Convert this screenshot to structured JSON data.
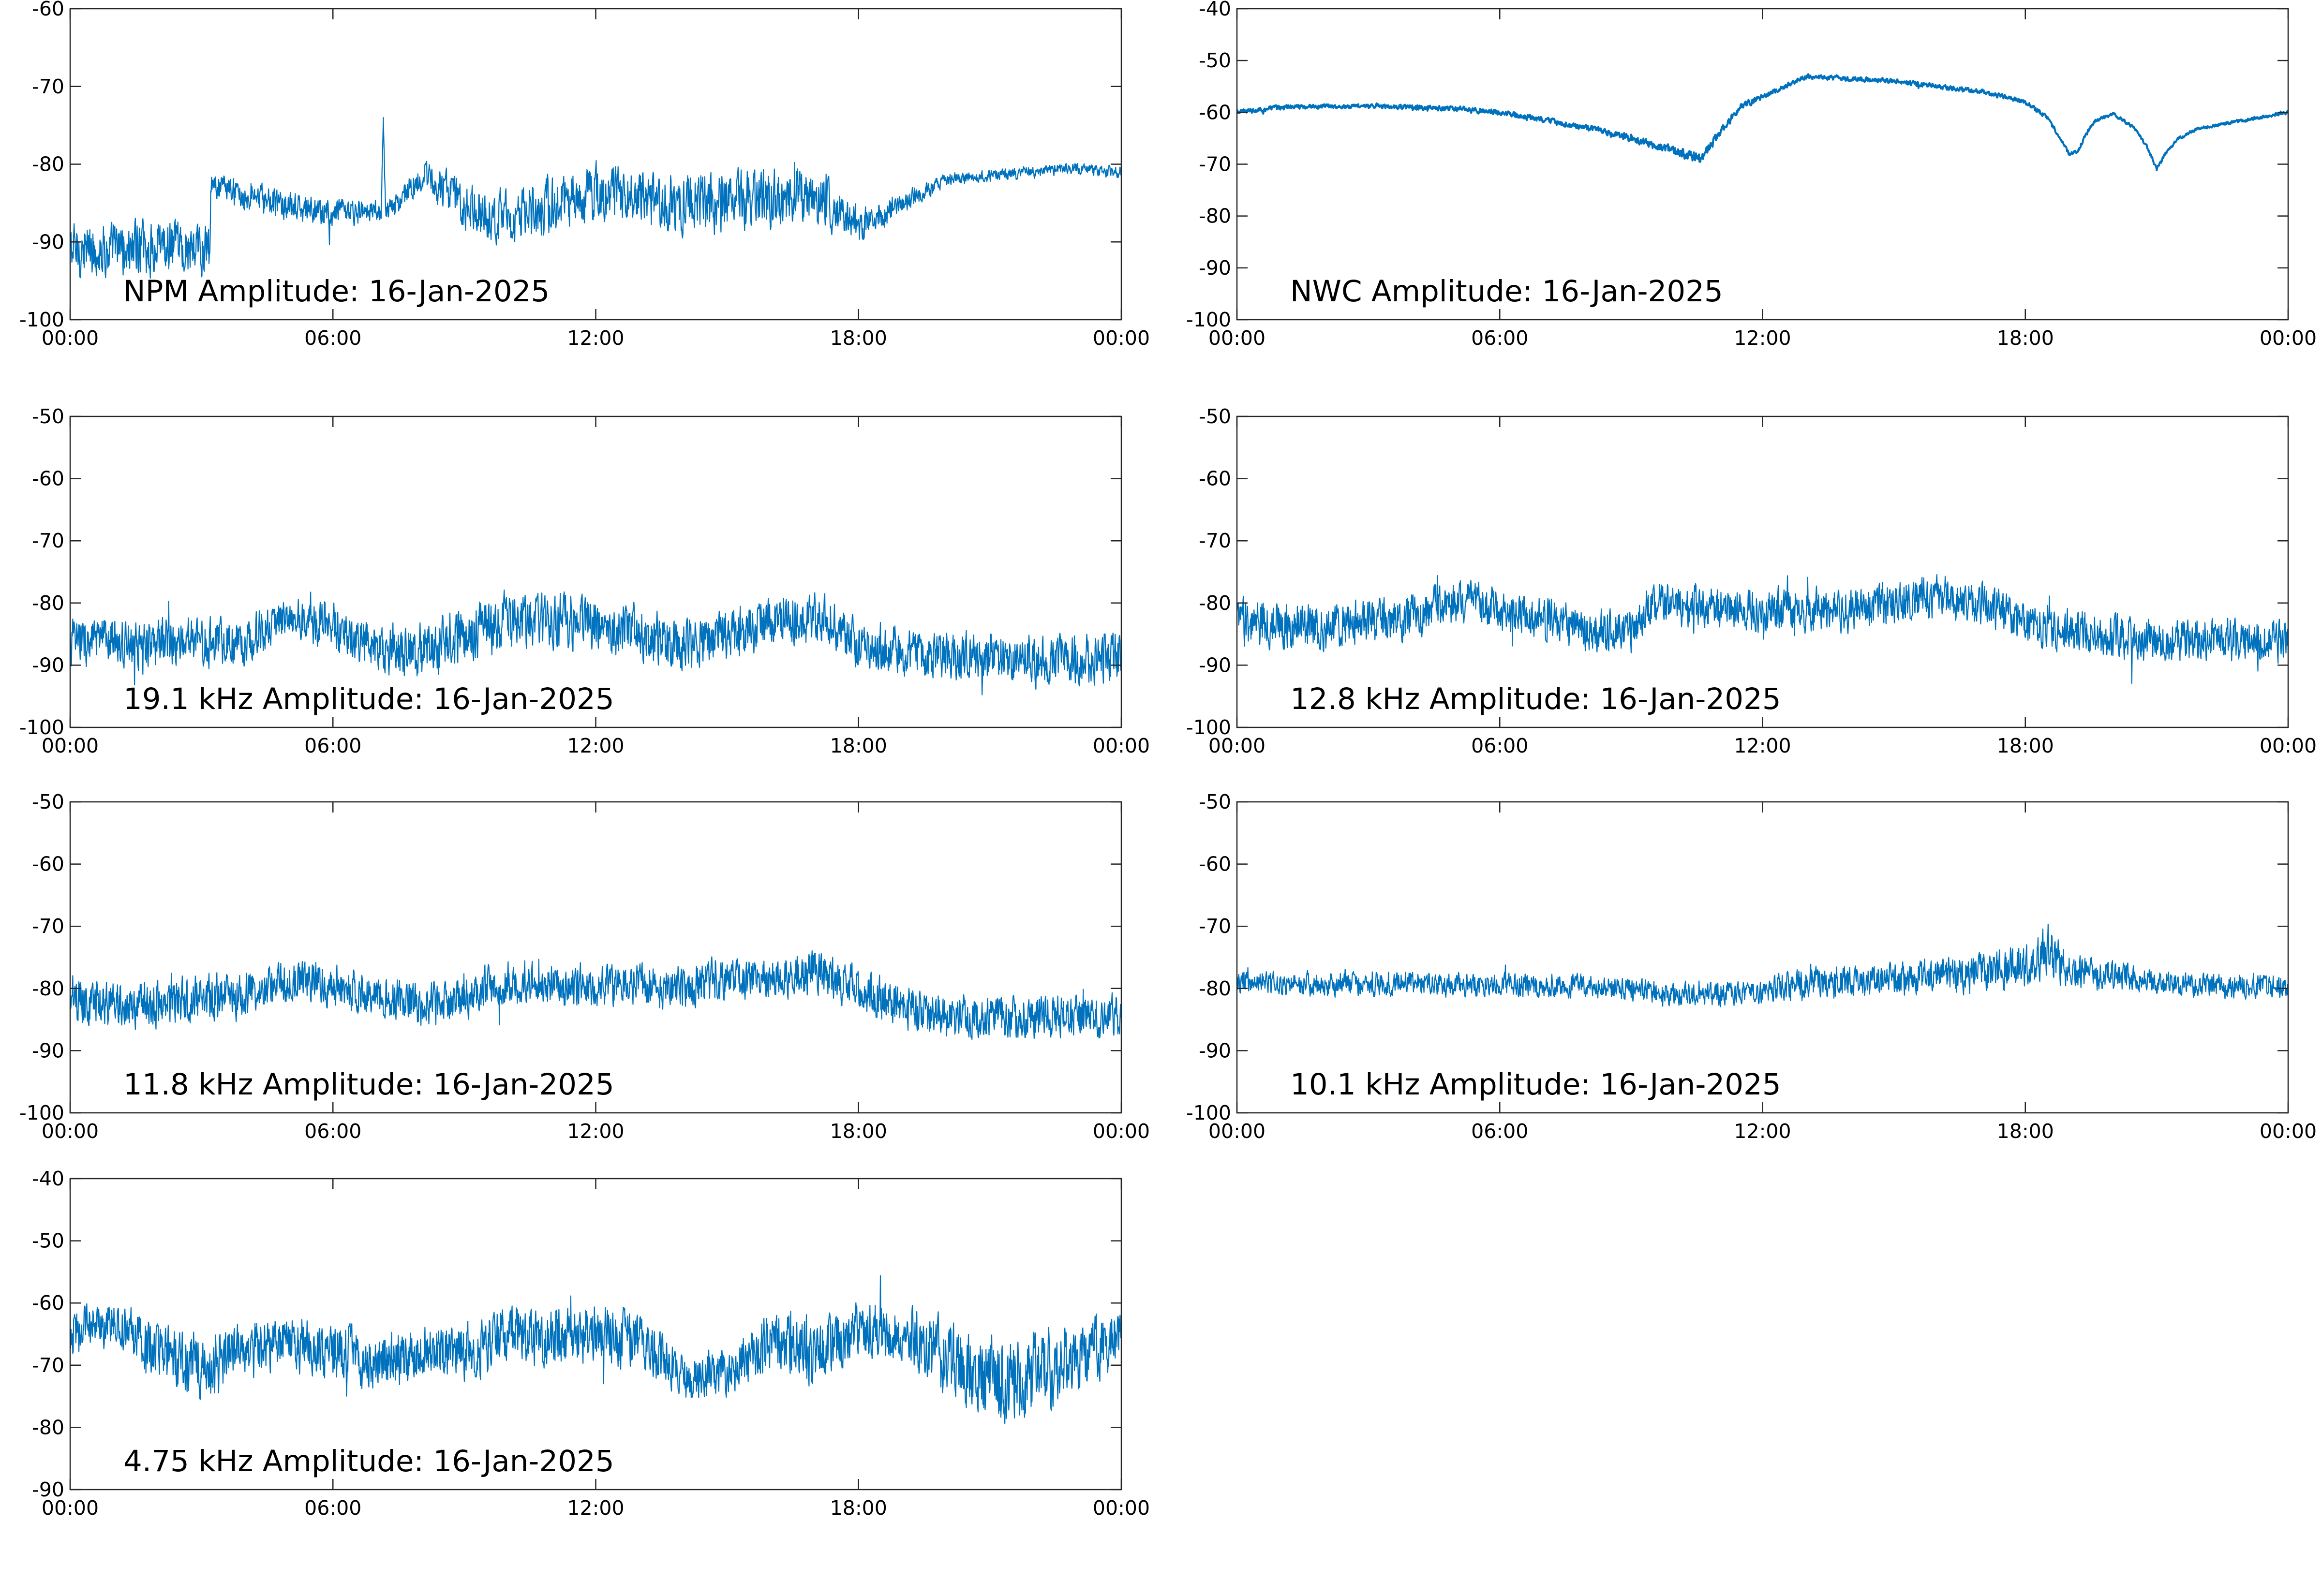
{
  "line_color": "#0072BD",
  "chart_data": [
    {
      "type": "line",
      "title": "NPM Amplitude: 16-Jan-2025",
      "xlabel": "",
      "ylabel": "",
      "x_ticks": [
        "00:00",
        "06:00",
        "12:00",
        "18:00",
        "00:00"
      ],
      "xlim": [
        0,
        24
      ],
      "ylim": [
        -100,
        -60
      ],
      "y_ticks": [
        -100,
        -90,
        -80,
        -70,
        -60
      ],
      "grid": false,
      "series": [
        {
          "x": [
            0,
            3.2,
            3.2,
            4,
            5,
            6,
            7.1,
            7.15,
            7.2,
            7.3,
            8,
            9,
            10,
            11,
            12,
            13,
            14,
            15,
            16,
            17,
            18,
            19,
            20,
            21,
            22,
            23,
            24
          ],
          "values": [
            -91,
            -91,
            -82.5,
            -84,
            -85.5,
            -86.5,
            -86,
            -74,
            -86,
            -86,
            -81.5,
            -85,
            -87.5,
            -85.5,
            -84,
            -84,
            -85,
            -85,
            -84,
            -84,
            -88,
            -85,
            -82,
            -81.5,
            -81,
            -80.5,
            -81
          ],
          "noise": [
            4.5,
            4.5,
            2,
            2.5,
            2.5,
            2.5,
            2,
            0,
            2,
            2,
            2.5,
            4,
            5,
            5,
            5,
            4.5,
            5,
            5,
            5,
            4.5,
            3,
            2,
            1,
            1,
            1,
            1,
            1
          ]
        }
      ]
    },
    {
      "type": "line",
      "title": "NWC Amplitude: 16-Jan-2025",
      "xlabel": "",
      "ylabel": "",
      "x_ticks": [
        "00:00",
        "06:00",
        "12:00",
        "18:00",
        "00:00"
      ],
      "xlim": [
        0,
        24
      ],
      "ylim": [
        -100,
        -40
      ],
      "y_ticks": [
        -100,
        -90,
        -80,
        -70,
        -60,
        -50,
        -40
      ],
      "grid": false,
      "series": [
        {
          "x": [
            0,
            1,
            2,
            3,
            4,
            5,
            6,
            7,
            8,
            9,
            10,
            10.6,
            11,
            11.5,
            12,
            12.5,
            13,
            14,
            15,
            16,
            17,
            18,
            18.5,
            18.8,
            19,
            19.2,
            19.4,
            19.6,
            20,
            20.5,
            20.8,
            21,
            21.2,
            21.5,
            22,
            23,
            24
          ],
          "values": [
            -60,
            -59,
            -58.8,
            -58.8,
            -59,
            -59.3,
            -60,
            -61.5,
            -63,
            -65,
            -67.5,
            -69,
            -64,
            -59,
            -57,
            -55,
            -53,
            -53.5,
            -54,
            -55,
            -56,
            -58,
            -61,
            -65,
            -68,
            -67.5,
            -64,
            -61.5,
            -60.3,
            -63,
            -67,
            -71,
            -68,
            -65,
            -63,
            -61.5,
            -60
          ],
          "noise": [
            0.6,
            0.6,
            0.5,
            0.5,
            0.6,
            0.6,
            0.7,
            0.7,
            0.8,
            0.9,
            1.2,
            1.4,
            1,
            0.8,
            0.7,
            0.6,
            0.6,
            0.6,
            0.6,
            0.6,
            0.6,
            0.6,
            0.6,
            0.5,
            0.5,
            0.5,
            0.5,
            0.4,
            0.4,
            0.4,
            0.4,
            0.4,
            0.4,
            0.4,
            0.4,
            0.4,
            0.4
          ]
        }
      ]
    },
    {
      "type": "line",
      "title": "19.1 kHz Amplitude: 16-Jan-2025",
      "xlabel": "",
      "ylabel": "",
      "x_ticks": [
        "00:00",
        "06:00",
        "12:00",
        "18:00",
        "00:00"
      ],
      "xlim": [
        0,
        24
      ],
      "ylim": [
        -100,
        -50
      ],
      "y_ticks": [
        -100,
        -90,
        -80,
        -70,
        -60,
        -50
      ],
      "grid": false,
      "series": [
        {
          "x": [
            0,
            2,
            4,
            5,
            6,
            7,
            8,
            9,
            10,
            11,
            12,
            13,
            14,
            15,
            16,
            17,
            17.5,
            18,
            19,
            20,
            21,
            22,
            23,
            24
          ],
          "values": [
            -86,
            -86.5,
            -86,
            -82,
            -84,
            -87,
            -88,
            -85,
            -83,
            -82.5,
            -83.5,
            -85,
            -86.5,
            -85,
            -83,
            -82.5,
            -83.5,
            -87,
            -88,
            -88.5,
            -89,
            -89,
            -89,
            -89
          ],
          "noise": [
            5,
            5,
            5,
            4,
            5,
            5,
            6,
            6,
            6,
            6,
            6,
            5.5,
            5.5,
            5.5,
            5,
            5,
            5,
            5,
            5,
            5,
            5,
            5.5,
            5.5,
            5.5
          ]
        }
      ]
    },
    {
      "type": "line",
      "title": "12.8 kHz Amplitude: 16-Jan-2025",
      "xlabel": "",
      "ylabel": "",
      "x_ticks": [
        "00:00",
        "06:00",
        "12:00",
        "18:00",
        "00:00"
      ],
      "xlim": [
        0,
        24
      ],
      "ylim": [
        -100,
        -50
      ],
      "y_ticks": [
        -100,
        -90,
        -80,
        -70,
        -60,
        -50
      ],
      "grid": false,
      "series": [
        {
          "x": [
            0,
            2,
            4,
            5,
            6,
            7,
            8,
            9,
            9.5,
            10,
            12,
            14,
            15,
            16,
            17,
            18,
            19,
            20,
            21,
            22,
            23,
            24
          ],
          "values": [
            -83,
            -84,
            -82,
            -80,
            -81,
            -82.5,
            -84,
            -84.5,
            -80,
            -80.5,
            -81,
            -81,
            -80,
            -79,
            -80,
            -83,
            -84.5,
            -85.5,
            -86,
            -86,
            -86,
            -86
          ],
          "noise": [
            5,
            5,
            5,
            4.5,
            4.5,
            4.5,
            4.5,
            4.5,
            4.5,
            4.5,
            4.5,
            4.5,
            4.5,
            4.5,
            4.5,
            4.5,
            4.5,
            4.5,
            4.5,
            4.5,
            4.5,
            4.5
          ]
        }
      ]
    },
    {
      "type": "line",
      "title": "11.8 kHz Amplitude: 16-Jan-2025",
      "xlabel": "",
      "ylabel": "",
      "x_ticks": [
        "00:00",
        "06:00",
        "12:00",
        "18:00",
        "00:00"
      ],
      "xlim": [
        0,
        24
      ],
      "ylim": [
        -100,
        -50
      ],
      "y_ticks": [
        -100,
        -90,
        -80,
        -70,
        -60,
        -50
      ],
      "grid": false,
      "series": [
        {
          "x": [
            0,
            2,
            4,
            5,
            6,
            7,
            8,
            9,
            10,
            12,
            14,
            16,
            17,
            18,
            19,
            20,
            21,
            22,
            23,
            24
          ],
          "values": [
            -82,
            -82.5,
            -81,
            -78.5,
            -79.5,
            -81,
            -83,
            -81,
            -79,
            -79.5,
            -79.5,
            -78,
            -77.5,
            -80,
            -83,
            -84.5,
            -84.5,
            -84.5,
            -84.5,
            -84.5
          ],
          "noise": [
            5,
            5,
            5,
            4.5,
            4.5,
            4.5,
            4.5,
            4.5,
            4.5,
            4.5,
            4.5,
            4.5,
            4.5,
            4.5,
            4.5,
            4.5,
            4.5,
            4.5,
            4.5,
            4.5
          ]
        }
      ]
    },
    {
      "type": "line",
      "title": "10.1 kHz Amplitude: 16-Jan-2025",
      "xlabel": "",
      "ylabel": "",
      "x_ticks": [
        "00:00",
        "06:00",
        "12:00",
        "18:00",
        "00:00"
      ],
      "xlim": [
        0,
        24
      ],
      "ylim": [
        -100,
        -50
      ],
      "y_ticks": [
        -100,
        -90,
        -80,
        -70,
        -60,
        -50
      ],
      "grid": false,
      "series": [
        {
          "x": [
            0,
            2,
            4,
            6,
            8,
            10,
            12,
            13,
            14,
            15,
            16,
            17,
            18,
            18.5,
            19,
            20,
            21,
            22,
            23,
            24
          ],
          "values": [
            -79,
            -79.5,
            -79,
            -79.5,
            -79.5,
            -81,
            -80.5,
            -79,
            -79,
            -78.5,
            -78,
            -77.5,
            -76,
            -74,
            -77,
            -78,
            -79,
            -79.5,
            -79.5,
            -79.5
          ],
          "noise": [
            2.5,
            2.5,
            2.5,
            2.5,
            2.5,
            2.5,
            2.5,
            3.5,
            3.5,
            3.5,
            3.5,
            4,
            4.5,
            5,
            4,
            3,
            2.5,
            2.5,
            2.5,
            2.5
          ]
        }
      ]
    },
    {
      "type": "line",
      "title": "4.75 kHz Amplitude: 16-Jan-2025",
      "xlabel": "",
      "ylabel": "",
      "x_ticks": [
        "00:00",
        "06:00",
        "12:00",
        "18:00",
        "00:00"
      ],
      "xlim": [
        0,
        24
      ],
      "ylim": [
        -90,
        -40
      ],
      "y_ticks": [
        -90,
        -80,
        -70,
        -60,
        -50,
        -40
      ],
      "grid": false,
      "series": [
        {
          "x": [
            0,
            1,
            2,
            3,
            4,
            5,
            6,
            7,
            8,
            9,
            10,
            11,
            12,
            13,
            14,
            15,
            16,
            17,
            18,
            19,
            20,
            21,
            22,
            23,
            24
          ],
          "values": [
            -65,
            -63,
            -68,
            -70,
            -68,
            -66,
            -68,
            -69,
            -68,
            -68,
            -65,
            -66,
            -65,
            -66,
            -72,
            -71,
            -66,
            -69,
            -64,
            -65,
            -69,
            -72,
            -72,
            -69,
            -65
          ],
          "noise": [
            5,
            5,
            6,
            7,
            6,
            6,
            6,
            6,
            6,
            6,
            6,
            6,
            6,
            6,
            5,
            5,
            6,
            7,
            6,
            6,
            8,
            9,
            9,
            7,
            6
          ]
        }
      ]
    }
  ]
}
